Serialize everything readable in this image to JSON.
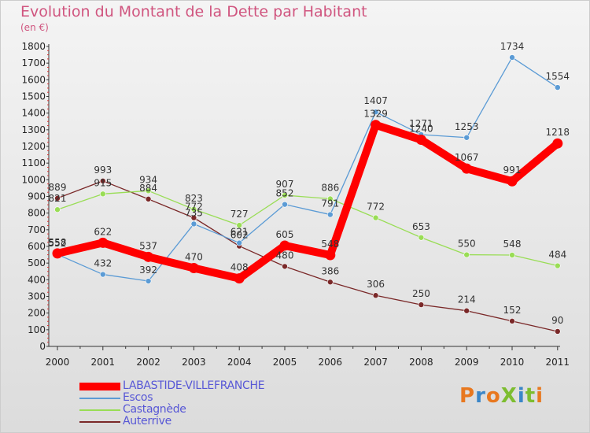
{
  "header": {
    "title": "Evolution du Montant de la Dette par Habitant",
    "unit": "(en €)"
  },
  "logo": {
    "text": "ProXiti",
    "colors": [
      "#e8781f",
      "#3a86c8",
      "#e8781f",
      "#7dbd30",
      "#3a86c8",
      "#7dbd30",
      "#e8781f"
    ]
  },
  "chart_data": {
    "type": "line",
    "title": "Evolution du Montant de la Dette par Habitant",
    "ylabel": "(en €)",
    "xlabel": "",
    "x": [
      "2000",
      "2001",
      "2002",
      "2003",
      "2004",
      "2005",
      "2006",
      "2007",
      "2008",
      "2009",
      "2010",
      "2011"
    ],
    "ylim": [
      0,
      1800
    ],
    "yticks": [
      0,
      100,
      200,
      300,
      400,
      500,
      600,
      700,
      800,
      900,
      1000,
      1100,
      1200,
      1300,
      1400,
      1500,
      1600,
      1700,
      1800
    ],
    "grid": false,
    "legend_position": "bottom-left",
    "series": [
      {
        "name": "LABASTIDE-VILLEFRANCHE",
        "color": "#ff0000",
        "values": [
          558,
          622,
          537,
          470,
          408,
          605,
          548,
          1329,
          1240,
          1067,
          991,
          1218
        ]
      },
      {
        "name": "Escos",
        "color": "#5b9bd5",
        "values": [
          552,
          432,
          392,
          735,
          621,
          852,
          791,
          1407,
          1271,
          1253,
          1734,
          1554
        ]
      },
      {
        "name": "Castagnède",
        "color": "#99dd55",
        "values": [
          821,
          915,
          934,
          823,
          727,
          907,
          886,
          772,
          653,
          550,
          548,
          484
        ]
      },
      {
        "name": "Auterrive",
        "color": "#7a2828",
        "values": [
          889,
          993,
          884,
          772,
          602,
          480,
          386,
          306,
          250,
          214,
          152,
          90
        ]
      }
    ]
  }
}
